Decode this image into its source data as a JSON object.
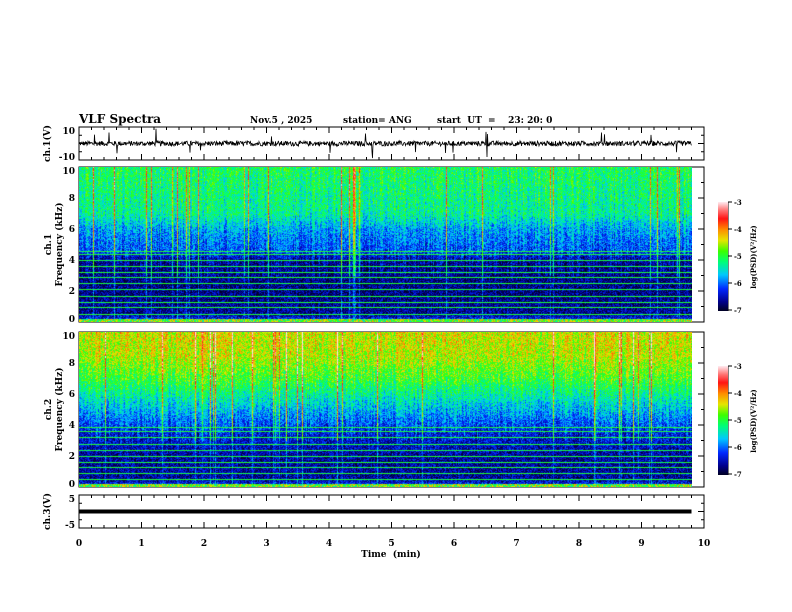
{
  "header": {
    "title": "VLF Spectra",
    "date": "Nov.5  , 2025",
    "station": "station= ANG",
    "start": "start  UT  =    23: 20: 0"
  },
  "chart_data": [
    {
      "type": "line",
      "name": "ch1-waveform",
      "ylabel": "ch.1(V)",
      "ylim": [
        -10,
        10
      ],
      "yticks": [
        "10",
        "-10"
      ],
      "xlim": [
        0,
        10
      ],
      "data_extent_min": 9.8,
      "baseline": 0,
      "noise_amplitude": 1.5
    },
    {
      "type": "heatmap",
      "name": "ch1-spectrogram",
      "ylabel": "ch.1\nFrequency (kHz)",
      "ylabel_lines": [
        "ch.1",
        "Frequency  (kHz)"
      ],
      "ylim": [
        0,
        10
      ],
      "yticks": [
        "0",
        "2",
        "4",
        "6",
        "8",
        "10"
      ],
      "colorbar": {
        "label": "log(PSD)(V²/Hz)",
        "range": [
          -7,
          -3
        ],
        "ticks": [
          "-3",
          "-4",
          "-5",
          "-6",
          "-7"
        ]
      },
      "profile": [
        [
          0,
          -6.0
        ],
        [
          0.5,
          -6.6
        ],
        [
          2,
          -6.7
        ],
        [
          4,
          -6.6
        ],
        [
          4.6,
          -6.1
        ],
        [
          6,
          -5.8
        ],
        [
          7,
          -5.3
        ],
        [
          10,
          -5.1
        ]
      ],
      "lines_khz": [
        0.5,
        1.0,
        1.3,
        1.7,
        2.1,
        2.5,
        2.9,
        3.2,
        3.6,
        4.0,
        4.4,
        4.6
      ]
    },
    {
      "type": "heatmap",
      "name": "ch2-spectrogram",
      "ylabel_lines": [
        "ch.2",
        "Frequency  (kHz)"
      ],
      "ylim": [
        0,
        10
      ],
      "yticks": [
        "0",
        "2",
        "4",
        "6",
        "8",
        "10"
      ],
      "colorbar": {
        "label": "log(PSD)(V²/Hz)",
        "range": [
          -7,
          -3
        ],
        "ticks": [
          "-3",
          "-4",
          "-5",
          "-6",
          "-7"
        ]
      },
      "profile": [
        [
          0,
          -6.0
        ],
        [
          0.5,
          -6.6
        ],
        [
          2,
          -6.6
        ],
        [
          3.5,
          -6.3
        ],
        [
          5,
          -5.7
        ],
        [
          7,
          -4.9
        ],
        [
          8.5,
          -4.5
        ],
        [
          10,
          -4.4
        ]
      ],
      "lines_khz": [
        0.5,
        0.9,
        1.3,
        1.6,
        2.0,
        2.4,
        2.8,
        3.2,
        3.6,
        3.9
      ]
    },
    {
      "type": "line",
      "name": "ch3-waveform",
      "ylabel": "ch.3(V)",
      "ylim": [
        -5,
        5
      ],
      "yticks": [
        "5",
        "-5"
      ],
      "xlim": [
        0,
        10
      ],
      "data_extent_min": 9.8,
      "baseline": 0
    }
  ],
  "xaxis": {
    "label": "Time  (min)",
    "ticks": [
      "0",
      "1",
      "2",
      "3",
      "4",
      "5",
      "6",
      "7",
      "8",
      "9",
      "10"
    ],
    "range": [
      0,
      10
    ]
  }
}
